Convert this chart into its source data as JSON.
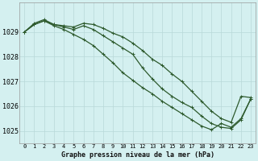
{
  "title": "Graphe pression niveau de la mer (hPa)",
  "background_color": "#d4f0f0",
  "grid_color": "#b8d8d8",
  "line_color": "#2d5a2d",
  "x_labels": [
    "0",
    "1",
    "2",
    "3",
    "4",
    "5",
    "6",
    "7",
    "8",
    "9",
    "10",
    "11",
    "12",
    "13",
    "14",
    "15",
    "16",
    "17",
    "18",
    "19",
    "20",
    "21",
    "22",
    "23"
  ],
  "series": [
    [
      1029.0,
      1029.35,
      1029.5,
      1029.3,
      1029.25,
      1029.2,
      1029.35,
      1029.3,
      1029.15,
      1028.95,
      1028.8,
      1028.55,
      1028.25,
      1027.9,
      1027.65,
      1027.3,
      1027.0,
      1026.6,
      1026.2,
      1025.8,
      1025.5,
      1025.35,
      1026.4,
      1026.35
    ],
    [
      1029.0,
      1029.3,
      1029.45,
      1029.3,
      1029.2,
      1029.1,
      1029.25,
      1029.1,
      1028.85,
      1028.6,
      1028.35,
      1028.1,
      1027.55,
      1027.1,
      1026.7,
      1026.4,
      1026.15,
      1025.95,
      1025.6,
      1025.3,
      1025.15,
      1025.1,
      1025.45,
      1026.3
    ],
    [
      1029.0,
      1029.3,
      1029.45,
      1029.25,
      1029.1,
      1028.9,
      1028.7,
      1028.45,
      1028.1,
      1027.75,
      1027.35,
      1027.05,
      1026.75,
      1026.5,
      1026.2,
      1025.95,
      1025.7,
      1025.45,
      1025.2,
      1025.05,
      1025.3,
      1025.15,
      1025.5,
      1026.3
    ]
  ],
  "ylim": [
    1024.5,
    1030.2
  ],
  "yticks": [
    1025,
    1026,
    1027,
    1028,
    1029
  ],
  "marker": "+",
  "markersize": 3.5,
  "linewidth": 0.9,
  "figsize": [
    3.2,
    2.0
  ],
  "dpi": 100
}
